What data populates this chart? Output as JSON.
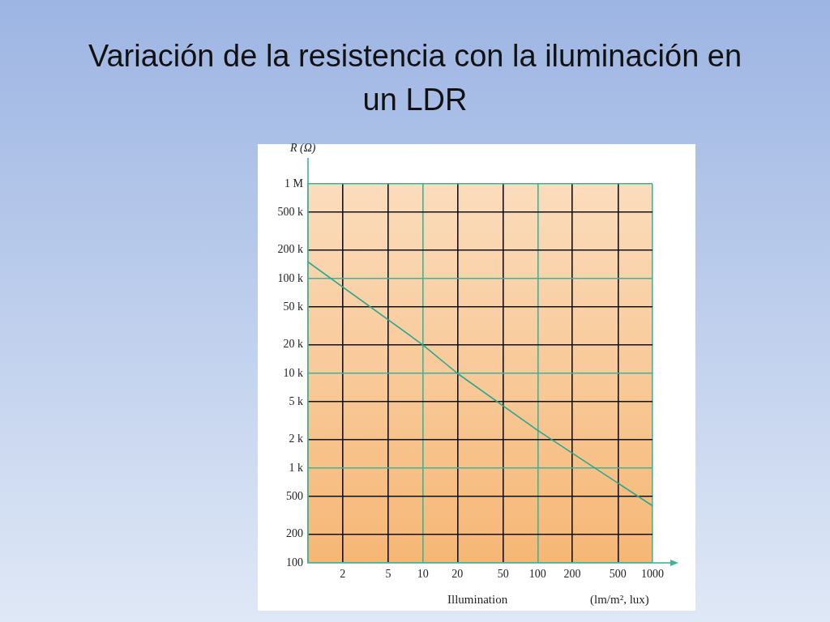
{
  "chart_data": {
    "type": "line",
    "title": "Variación de la resistencia con la iluminación en un LDR",
    "xlabel": "Illumination",
    "ylabel": "R (Ω)",
    "annotations": [
      "(lm/m², lux)"
    ],
    "x": [
      1,
      10,
      20,
      100,
      1000
    ],
    "series": [
      {
        "color": "#2aa88f",
        "values": [
          150000,
          20000,
          10000,
          2500,
          400
        ]
      }
    ],
    "xlim": [
      1,
      1000
    ],
    "ylim": [
      100,
      1000000
    ],
    "xticks": [
      {
        "value": 1,
        "label": null
      },
      2,
      5,
      10,
      20,
      50,
      100,
      200,
      500,
      1000
    ],
    "yticks": [
      100,
      200,
      500,
      {
        "value": 1000,
        "label": "1 k"
      },
      {
        "value": 2000,
        "label": "2 k"
      },
      {
        "value": 5000,
        "label": "5 k"
      },
      {
        "value": 10000,
        "label": "10 k"
      },
      {
        "value": 20000,
        "label": "20 k"
      },
      {
        "value": 50000,
        "label": "50 k"
      },
      {
        "value": 100000,
        "label": "100 k"
      },
      {
        "value": 200000,
        "label": "200 k"
      },
      {
        "value": 500000,
        "label": "500 k"
      },
      {
        "value": 1000000,
        "label": "1 M"
      }
    ],
    "log": "xy",
    "grid": true,
    "legend": false,
    "marker": "none",
    "line_style": "solid"
  }
}
